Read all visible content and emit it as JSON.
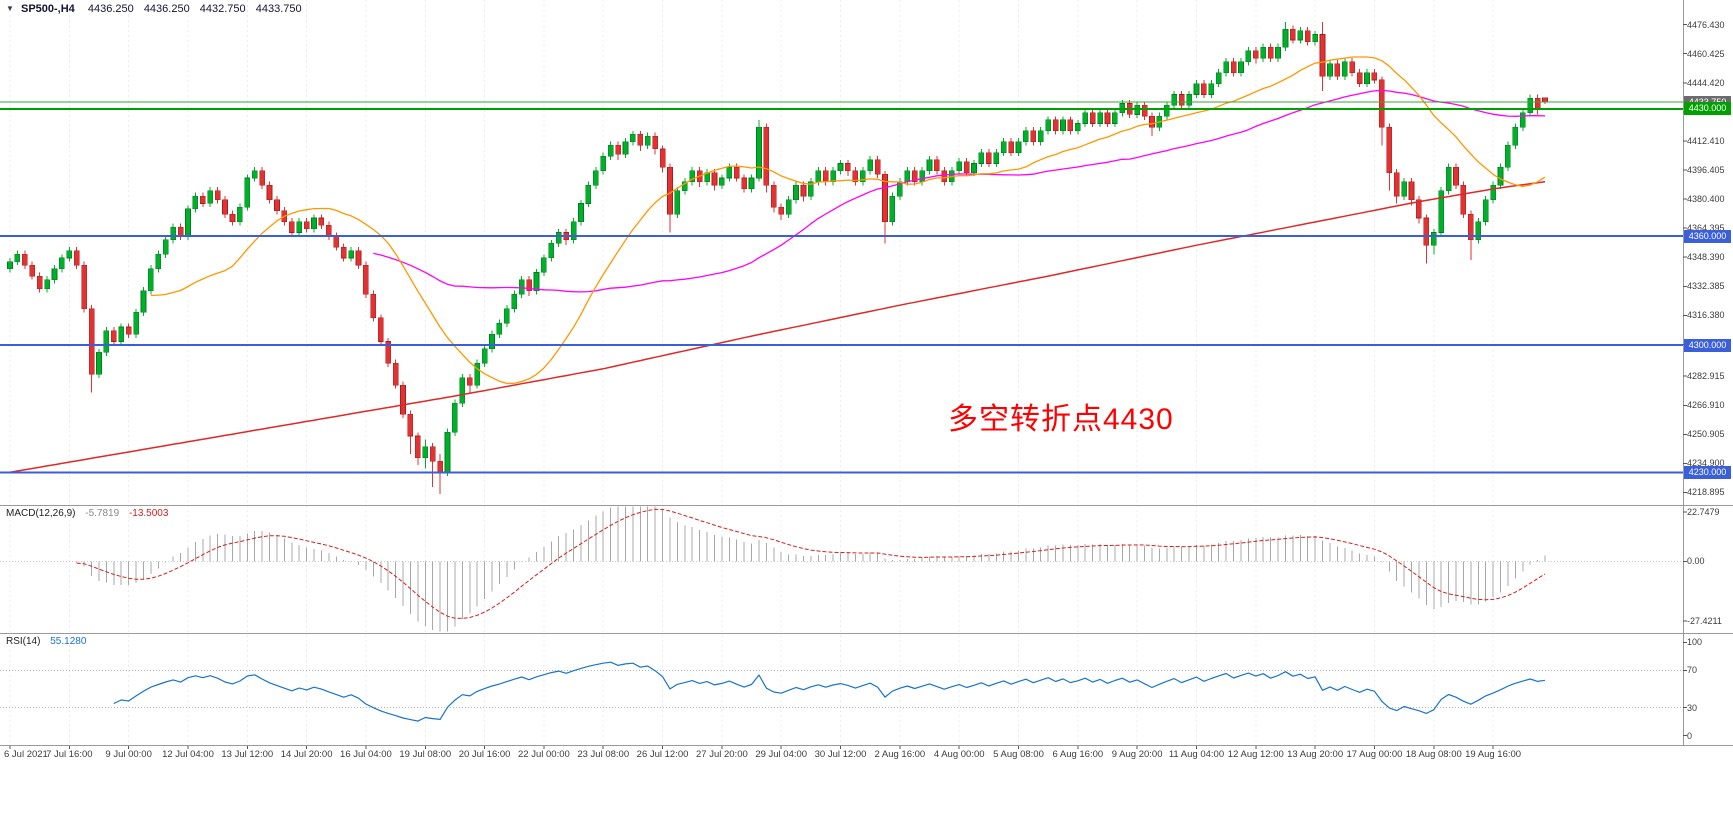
{
  "window": {
    "menu_icon": "▼",
    "symbol": "SP500-,H4",
    "open": "4436.250",
    "high": "4436.250",
    "low": "4432.750",
    "close": "4433.750"
  },
  "annotation": {
    "text": "多空转折点4430",
    "color": "#ff0000"
  },
  "price_scale": {
    "ticks": [
      "4476.430",
      "4460.425",
      "4444.420",
      "4428.415",
      "4412.410",
      "4396.405",
      "4380.400",
      "4364.395",
      "4348.390",
      "4332.385",
      "4316.380",
      "4300.375",
      "4282.915",
      "4266.910",
      "4250.905",
      "4234.900",
      "4218.895"
    ],
    "badges": [
      {
        "label": "4433.750",
        "price": 4433.75,
        "color": "#6b6b6b"
      },
      {
        "label": "4430.000",
        "price": 4430,
        "color": "#00a000"
      },
      {
        "label": "4360.000",
        "price": 4360,
        "color": "#3a5fd9"
      },
      {
        "label": "4300.000",
        "price": 4300,
        "color": "#3a5fd9"
      },
      {
        "label": "4230.000",
        "price": 4230,
        "color": "#3a5fd9"
      }
    ]
  },
  "macd_panel": {
    "name": "MACD(12,26,9)",
    "value": "-5.7819",
    "signal_value": "-13.5003",
    "scale": [
      "22.7479",
      "0.00",
      "-27.4211"
    ],
    "histogram_color": "#a8a8a8",
    "signal_color": "#d42020"
  },
  "rsi_panel": {
    "name": "RSI(14)",
    "value": "55.1280",
    "scale": [
      "100",
      "70",
      "30",
      "0"
    ],
    "levels": [
      70,
      30
    ],
    "line_color": "#1874cd"
  },
  "time_axis": {
    "bars_per_label": 8,
    "labels": [
      "6 Jul 2021",
      "7 Jul 16:00",
      "9 Jul 00:00",
      "12 Jul 04:00",
      "13 Jul 12:00",
      "14 Jul 20:00",
      "16 Jul 04:00",
      "19 Jul 08:00",
      "20 Jul 16:00",
      "22 Jul 00:00",
      "23 Jul 08:00",
      "26 Jul 12:00",
      "27 Jul 20:00",
      "29 Jul 04:00",
      "30 Jul 12:00",
      "2 Aug 16:00",
      "4 Aug 00:00",
      "5 Aug 08:00",
      "6 Aug 16:00",
      "9 Aug 20:00",
      "11 Aug 04:00",
      "12 Aug 12:00",
      "13 Aug 20:00",
      "17 Aug 00:00",
      "18 Aug 08:00",
      "19 Aug 16:00"
    ]
  },
  "chart_data": {
    "type": "candlestick",
    "symbol": "SP500-",
    "timeframe": "H4",
    "title": "SP500-,H4 4436.250 4436.250 4432.750 4433.750",
    "ylim": [
      4212,
      4490
    ],
    "up_color": "#00b02a",
    "down_color": "#e23232",
    "candles": [
      [
        4342,
        4348,
        4340,
        4346
      ],
      [
        4346,
        4352,
        4344,
        4350
      ],
      [
        4350,
        4352,
        4342,
        4344
      ],
      [
        4344,
        4346,
        4336,
        4338
      ],
      [
        4338,
        4340,
        4329,
        4331
      ],
      [
        4331,
        4338,
        4329,
        4336
      ],
      [
        4336,
        4344,
        4334,
        4342
      ],
      [
        4342,
        4350,
        4340,
        4348
      ],
      [
        4348,
        4354,
        4346,
        4352
      ],
      [
        4352,
        4354,
        4342,
        4344
      ],
      [
        4344,
        4346,
        4318,
        4320
      ],
      [
        4320,
        4322,
        4274,
        4284
      ],
      [
        4284,
        4298,
        4282,
        4296
      ],
      [
        4296,
        4310,
        4294,
        4308
      ],
      [
        4308,
        4310,
        4300,
        4302
      ],
      [
        4302,
        4312,
        4300,
        4310
      ],
      [
        4310,
        4312,
        4304,
        4306
      ],
      [
        4306,
        4320,
        4304,
        4318
      ],
      [
        4318,
        4332,
        4316,
        4330
      ],
      [
        4330,
        4344,
        4328,
        4342
      ],
      [
        4342,
        4352,
        4340,
        4350
      ],
      [
        4350,
        4360,
        4348,
        4358
      ],
      [
        4358,
        4367,
        4356,
        4365
      ],
      [
        4365,
        4367,
        4358,
        4360
      ],
      [
        4360,
        4377,
        4358,
        4375
      ],
      [
        4375,
        4384,
        4373,
        4382
      ],
      [
        4382,
        4384,
        4376,
        4378
      ],
      [
        4378,
        4387,
        4376,
        4385
      ],
      [
        4385,
        4387,
        4378,
        4380
      ],
      [
        4380,
        4382,
        4370,
        4372
      ],
      [
        4372,
        4374,
        4366,
        4368
      ],
      [
        4368,
        4378,
        4366,
        4376
      ],
      [
        4376,
        4394,
        4374,
        4392
      ],
      [
        4392,
        4398,
        4390,
        4396
      ],
      [
        4396,
        4398,
        4386,
        4388
      ],
      [
        4388,
        4390,
        4378,
        4380
      ],
      [
        4380,
        4382,
        4372,
        4374
      ],
      [
        4374,
        4376,
        4366,
        4368
      ],
      [
        4368,
        4370,
        4360,
        4362
      ],
      [
        4362,
        4370,
        4360,
        4368
      ],
      [
        4368,
        4370,
        4362,
        4364
      ],
      [
        4364,
        4372,
        4362,
        4370
      ],
      [
        4370,
        4372,
        4364,
        4366
      ],
      [
        4366,
        4368,
        4358,
        4360
      ],
      [
        4360,
        4362,
        4352,
        4354
      ],
      [
        4354,
        4356,
        4346,
        4348
      ],
      [
        4348,
        4354,
        4346,
        4352
      ],
      [
        4352,
        4354,
        4342,
        4344
      ],
      [
        4344,
        4346,
        4326,
        4328
      ],
      [
        4328,
        4330,
        4313,
        4315
      ],
      [
        4315,
        4317,
        4300,
        4302
      ],
      [
        4302,
        4304,
        4288,
        4290
      ],
      [
        4290,
        4292,
        4276,
        4278
      ],
      [
        4278,
        4280,
        4260,
        4262
      ],
      [
        4262,
        4264,
        4240,
        4250
      ],
      [
        4250,
        4252,
        4234,
        4238
      ],
      [
        4238,
        4248,
        4232,
        4244
      ],
      [
        4244,
        4246,
        4222,
        4236
      ],
      [
        4236,
        4240,
        4218,
        4230
      ],
      [
        4230,
        4254,
        4228,
        4252
      ],
      [
        4252,
        4270,
        4250,
        4268
      ],
      [
        4268,
        4284,
        4266,
        4282
      ],
      [
        4282,
        4284,
        4274,
        4278
      ],
      [
        4278,
        4292,
        4276,
        4290
      ],
      [
        4290,
        4300,
        4288,
        4298
      ],
      [
        4298,
        4308,
        4296,
        4306
      ],
      [
        4306,
        4314,
        4304,
        4312
      ],
      [
        4312,
        4322,
        4310,
        4320
      ],
      [
        4320,
        4330,
        4318,
        4328
      ],
      [
        4328,
        4338,
        4326,
        4336
      ],
      [
        4336,
        4338,
        4327,
        4330
      ],
      [
        4330,
        4342,
        4328,
        4340
      ],
      [
        4340,
        4350,
        4338,
        4348
      ],
      [
        4348,
        4358,
        4346,
        4356
      ],
      [
        4356,
        4364,
        4354,
        4362
      ],
      [
        4362,
        4364,
        4355,
        4358
      ],
      [
        4358,
        4370,
        4356,
        4368
      ],
      [
        4368,
        4380,
        4366,
        4378
      ],
      [
        4378,
        4390,
        4376,
        4388
      ],
      [
        4388,
        4398,
        4386,
        4396
      ],
      [
        4396,
        4406,
        4394,
        4404
      ],
      [
        4404,
        4412,
        4402,
        4410
      ],
      [
        4410,
        4412,
        4402,
        4405
      ],
      [
        4405,
        4414,
        4403,
        4412
      ],
      [
        4412,
        4418,
        4410,
        4416
      ],
      [
        4416,
        4418,
        4407,
        4410
      ],
      [
        4410,
        4417,
        4408,
        4415
      ],
      [
        4415,
        4417,
        4405,
        4408
      ],
      [
        4408,
        4410,
        4395,
        4398
      ],
      [
        4398,
        4400,
        4362,
        4372
      ],
      [
        4372,
        4387,
        4370,
        4385
      ],
      [
        4385,
        4392,
        4383,
        4390
      ],
      [
        4390,
        4398,
        4388,
        4396
      ],
      [
        4396,
        4398,
        4387,
        4390
      ],
      [
        4390,
        4397,
        4388,
        4395
      ],
      [
        4395,
        4397,
        4385,
        4388
      ],
      [
        4388,
        4394,
        4386,
        4392
      ],
      [
        4392,
        4400,
        4390,
        4398
      ],
      [
        4398,
        4400,
        4390,
        4392
      ],
      [
        4392,
        4394,
        4384,
        4386
      ],
      [
        4386,
        4394,
        4384,
        4392
      ],
      [
        4392,
        4424,
        4390,
        4420
      ],
      [
        4420,
        4422,
        4384,
        4388
      ],
      [
        4388,
        4390,
        4373,
        4376
      ],
      [
        4376,
        4378,
        4369,
        4372
      ],
      [
        4372,
        4382,
        4370,
        4380
      ],
      [
        4380,
        4390,
        4378,
        4388
      ],
      [
        4388,
        4390,
        4379,
        4382
      ],
      [
        4382,
        4392,
        4380,
        4390
      ],
      [
        4390,
        4398,
        4388,
        4396
      ],
      [
        4396,
        4398,
        4388,
        4390
      ],
      [
        4390,
        4398,
        4388,
        4396
      ],
      [
        4396,
        4402,
        4394,
        4400
      ],
      [
        4400,
        4402,
        4393,
        4396
      ],
      [
        4396,
        4398,
        4388,
        4390
      ],
      [
        4390,
        4398,
        4388,
        4396
      ],
      [
        4396,
        4404,
        4394,
        4402
      ],
      [
        4402,
        4404,
        4392,
        4394
      ],
      [
        4394,
        4396,
        4356,
        4368
      ],
      [
        4368,
        4384,
        4366,
        4382
      ],
      [
        4382,
        4392,
        4380,
        4390
      ],
      [
        4390,
        4398,
        4388,
        4396
      ],
      [
        4396,
        4398,
        4388,
        4390
      ],
      [
        4390,
        4398,
        4388,
        4396
      ],
      [
        4396,
        4404,
        4394,
        4402
      ],
      [
        4402,
        4404,
        4394,
        4396
      ],
      [
        4396,
        4398,
        4388,
        4390
      ],
      [
        4390,
        4398,
        4388,
        4396
      ],
      [
        4396,
        4403,
        4394,
        4401
      ],
      [
        4401,
        4403,
        4393,
        4395
      ],
      [
        4395,
        4402,
        4393,
        4400
      ],
      [
        4400,
        4408,
        4398,
        4406
      ],
      [
        4406,
        4408,
        4398,
        4400
      ],
      [
        4400,
        4408,
        4398,
        4406
      ],
      [
        4406,
        4414,
        4404,
        4412
      ],
      [
        4412,
        4414,
        4404,
        4406
      ],
      [
        4406,
        4414,
        4404,
        4412
      ],
      [
        4412,
        4420,
        4410,
        4418
      ],
      [
        4418,
        4420,
        4410,
        4412
      ],
      [
        4412,
        4420,
        4410,
        4418
      ],
      [
        4418,
        4426,
        4416,
        4424
      ],
      [
        4424,
        4426,
        4416,
        4418
      ],
      [
        4418,
        4426,
        4416,
        4424
      ],
      [
        4424,
        4426,
        4416,
        4418
      ],
      [
        4418,
        4424,
        4416,
        4422
      ],
      [
        4422,
        4430,
        4420,
        4428
      ],
      [
        4428,
        4430,
        4420,
        4422
      ],
      [
        4422,
        4430,
        4420,
        4428
      ],
      [
        4428,
        4430,
        4420,
        4422
      ],
      [
        4422,
        4430,
        4420,
        4428
      ],
      [
        4428,
        4435,
        4426,
        4433
      ],
      [
        4433,
        4435,
        4425,
        4427
      ],
      [
        4427,
        4434,
        4425,
        4432
      ],
      [
        4432,
        4434,
        4424,
        4426
      ],
      [
        4426,
        4428,
        4415,
        4420
      ],
      [
        4420,
        4428,
        4418,
        4426
      ],
      [
        4426,
        4434,
        4424,
        4432
      ],
      [
        4432,
        4440,
        4430,
        4438
      ],
      [
        4438,
        4440,
        4430,
        4432
      ],
      [
        4432,
        4440,
        4430,
        4438
      ],
      [
        4438,
        4446,
        4436,
        4444
      ],
      [
        4444,
        4446,
        4436,
        4438
      ],
      [
        4438,
        4446,
        4436,
        4444
      ],
      [
        4444,
        4452,
        4442,
        4450
      ],
      [
        4450,
        4458,
        4448,
        4456
      ],
      [
        4456,
        4458,
        4448,
        4450
      ],
      [
        4450,
        4458,
        4448,
        4456
      ],
      [
        4456,
        4464,
        4454,
        4462
      ],
      [
        4462,
        4464,
        4455,
        4458
      ],
      [
        4458,
        4466,
        4456,
        4464
      ],
      [
        4464,
        4466,
        4456,
        4458
      ],
      [
        4458,
        4466,
        4456,
        4464
      ],
      [
        4464,
        4478,
        4462,
        4474
      ],
      [
        4474,
        4476,
        4466,
        4468
      ],
      [
        4468,
        4475,
        4466,
        4473
      ],
      [
        4473,
        4475,
        4465,
        4467
      ],
      [
        4467,
        4473,
        4465,
        4471
      ],
      [
        4471,
        4478,
        4440,
        4448
      ],
      [
        4448,
        4457,
        4446,
        4455
      ],
      [
        4455,
        4457,
        4446,
        4448
      ],
      [
        4448,
        4458,
        4446,
        4456
      ],
      [
        4456,
        4458,
        4448,
        4450
      ],
      [
        4450,
        4452,
        4442,
        4444
      ],
      [
        4444,
        4452,
        4442,
        4450
      ],
      [
        4450,
        4452,
        4444,
        4446
      ],
      [
        4446,
        4448,
        4410,
        4420
      ],
      [
        4420,
        4422,
        4385,
        4395
      ],
      [
        4395,
        4397,
        4378,
        4382
      ],
      [
        4382,
        4392,
        4380,
        4390
      ],
      [
        4390,
        4392,
        4377,
        4380
      ],
      [
        4380,
        4382,
        4367,
        4370
      ],
      [
        4370,
        4372,
        4345,
        4355
      ],
      [
        4355,
        4364,
        4350,
        4362
      ],
      [
        4362,
        4387,
        4360,
        4385
      ],
      [
        4385,
        4400,
        4383,
        4398
      ],
      [
        4398,
        4400,
        4386,
        4388
      ],
      [
        4388,
        4390,
        4370,
        4372
      ],
      [
        4372,
        4374,
        4347,
        4358
      ],
      [
        4358,
        4370,
        4356,
        4368
      ],
      [
        4368,
        4382,
        4366,
        4380
      ],
      [
        4380,
        4390,
        4378,
        4388
      ],
      [
        4388,
        4400,
        4386,
        4398
      ],
      [
        4398,
        4412,
        4396,
        4410
      ],
      [
        4410,
        4422,
        4408,
        4420
      ],
      [
        4420,
        4430,
        4418,
        4428
      ],
      [
        4428,
        4438,
        4426,
        4436
      ],
      [
        4436,
        4438,
        4427,
        4430
      ],
      [
        4436.25,
        4436.25,
        4432.75,
        4433.75
      ]
    ],
    "horizontal_lines": [
      {
        "price": 4433.75,
        "color": "#33aa33",
        "width": 1
      },
      {
        "price": 4430,
        "color": "#00a000",
        "width": 2
      },
      {
        "price": 4360,
        "color": "#3a5fd9",
        "width": 2
      },
      {
        "price": 4300,
        "color": "#3a5fd9",
        "width": 2
      },
      {
        "price": 4230,
        "color": "#3a5fd9",
        "width": 2
      }
    ],
    "moving_averages": [
      {
        "name": "ma-fast",
        "type": "sma",
        "period": 20,
        "color": "#ff9800"
      },
      {
        "name": "ma-medium",
        "type": "sma",
        "period": 50,
        "color": "#ff00ff"
      },
      {
        "name": "ma-slow",
        "color": "#e02828",
        "points": [
          [
            0,
            4230
          ],
          [
            20,
            4244
          ],
          [
            40,
            4258
          ],
          [
            60,
            4272
          ],
          [
            80,
            4287
          ],
          [
            100,
            4305
          ],
          [
            120,
            4322
          ],
          [
            140,
            4338
          ],
          [
            160,
            4355
          ],
          [
            175,
            4367
          ],
          [
            190,
            4379
          ],
          [
            200,
            4386
          ],
          [
            207,
            4390
          ]
        ]
      }
    ],
    "indicators": [
      {
        "type": "MACD",
        "fast": 12,
        "slow": 26,
        "signal": 9,
        "last_value": -5.7819,
        "last_signal": -13.5003,
        "axis_range": [
          -27.4211,
          22.7479
        ]
      },
      {
        "type": "RSI",
        "period": 14,
        "last_value": 55.128,
        "axis_range": [
          0,
          100
        ],
        "levels": [
          70,
          30
        ]
      }
    ]
  }
}
